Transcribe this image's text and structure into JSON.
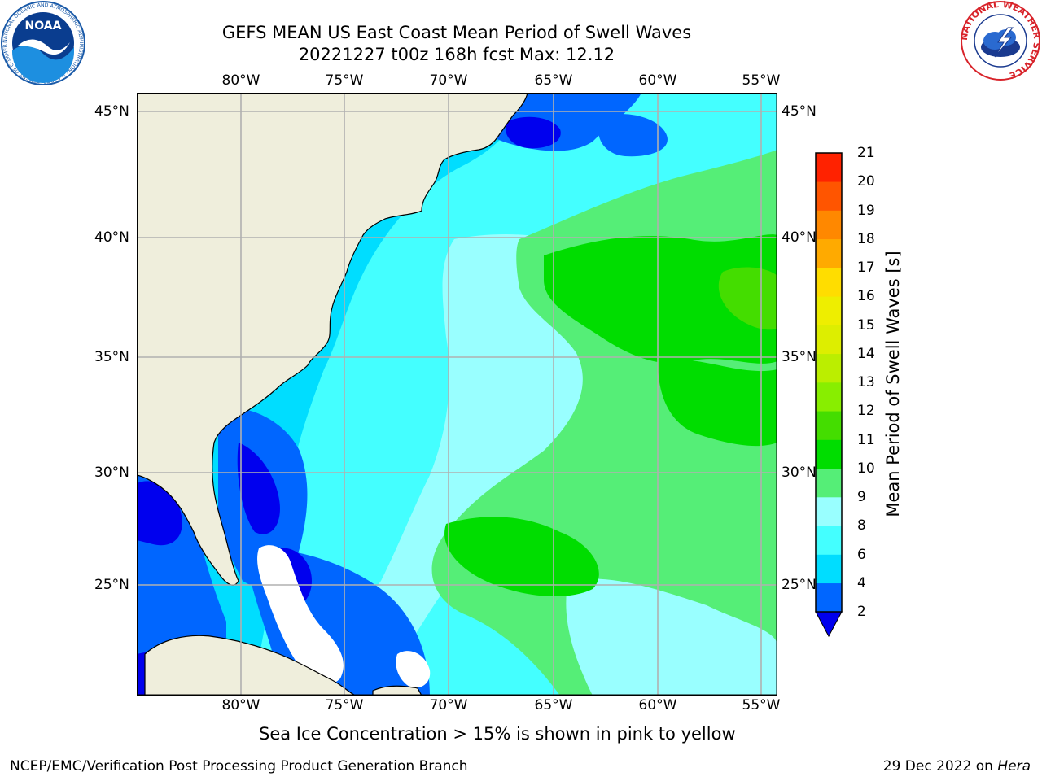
{
  "title": {
    "line1": "GEFS MEAN US East Coast Mean Period of Swell Waves",
    "line2": "20221227 t00z 168h fcst   Max: 12.12"
  },
  "map": {
    "lon_labels": [
      "80°W",
      "75°W",
      "70°W",
      "65°W",
      "60°W",
      "55°W"
    ],
    "lat_labels": [
      "45°N",
      "40°N",
      "35°N",
      "30°N",
      "25°N"
    ],
    "colors": {
      "land": "#efeedc",
      "grid": "#b0b0b0",
      "no_data": "#ffffff"
    }
  },
  "colorbar": {
    "label": "Mean Period of Swell Waves [s]",
    "ticks": [
      "2",
      "4",
      "6",
      "8",
      "9",
      "10",
      "11",
      "12",
      "13",
      "14",
      "15",
      "16",
      "17",
      "18",
      "19",
      "20",
      "21"
    ],
    "colors": [
      "#0066ff",
      "#00ddff",
      "#44ffff",
      "#99ffff",
      "#55ee77",
      "#00dd00",
      "#44dd00",
      "#88ee00",
      "#bbee00",
      "#ddee00",
      "#eeee00",
      "#ffdd00",
      "#ffaa00",
      "#ff8800",
      "#ff5500",
      "#ff2200"
    ],
    "under_color": "#0000ee"
  },
  "note": "Sea Ice Concentration > 15% is shown in pink to yellow",
  "footer": {
    "left": "NCEP/EMC/Verification Post Processing Product Generation Branch",
    "date": "29 Dec 2022 on ",
    "machine": "Hera"
  },
  "logos": {
    "noaa_text": "NOAA",
    "noaa_ring": "NATIONAL OCEANIC AND ATMOSPHERIC ADMINISTRATION · U.S. DEPARTMENT OF COMMERCE",
    "nws_ring": "NATIONAL WEATHER SERVICE"
  }
}
